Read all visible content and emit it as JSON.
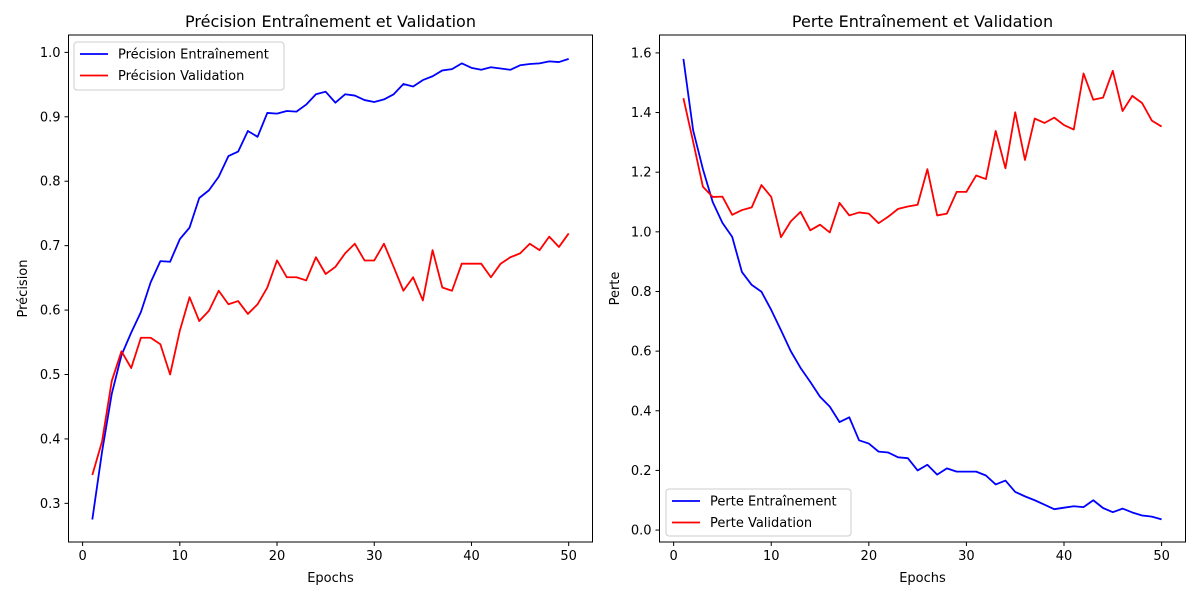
{
  "chart_data": [
    {
      "type": "line",
      "title": "Précision Entraînement et Validation",
      "xlabel": "Epochs",
      "ylabel": "Précision",
      "xlim": [
        -1.45,
        52.45
      ],
      "ylim": [
        0.24,
        1.027
      ],
      "xticks": [
        0,
        10,
        20,
        30,
        40,
        50
      ],
      "yticks": [
        0.3,
        0.4,
        0.5,
        0.6,
        0.7,
        0.8,
        0.9,
        1.0
      ],
      "ytick_labels": [
        "0.3",
        "0.4",
        "0.5",
        "0.6",
        "0.7",
        "0.8",
        "0.9",
        "1.0"
      ],
      "grid": false,
      "legend_position": "top-left",
      "x": [
        1,
        2,
        3,
        4,
        5,
        6,
        7,
        8,
        9,
        10,
        11,
        12,
        13,
        14,
        15,
        16,
        17,
        18,
        19,
        20,
        21,
        22,
        23,
        24,
        25,
        26,
        27,
        28,
        29,
        30,
        31,
        32,
        33,
        34,
        35,
        36,
        37,
        38,
        39,
        40,
        41,
        42,
        43,
        44,
        45,
        46,
        47,
        48,
        49,
        50
      ],
      "series": [
        {
          "name": "Précision Entraînement",
          "color": "#0000ff",
          "values": [
            0.275,
            0.38,
            0.47,
            0.53,
            0.565,
            0.597,
            0.643,
            0.676,
            0.675,
            0.71,
            0.728,
            0.774,
            0.786,
            0.807,
            0.839,
            0.846,
            0.878,
            0.869,
            0.906,
            0.905,
            0.909,
            0.908,
            0.919,
            0.935,
            0.939,
            0.922,
            0.935,
            0.933,
            0.926,
            0.923,
            0.927,
            0.935,
            0.951,
            0.947,
            0.957,
            0.963,
            0.972,
            0.974,
            0.983,
            0.976,
            0.973,
            0.977,
            0.975,
            0.973,
            0.98,
            0.982,
            0.983,
            0.986,
            0.985,
            0.99
          ]
        },
        {
          "name": "Précision Validation",
          "color": "#ff0000",
          "values": [
            0.344,
            0.396,
            0.49,
            0.536,
            0.51,
            0.557,
            0.557,
            0.547,
            0.5,
            0.568,
            0.62,
            0.583,
            0.599,
            0.63,
            0.609,
            0.614,
            0.594,
            0.609,
            0.635,
            0.677,
            0.651,
            0.651,
            0.646,
            0.682,
            0.656,
            0.667,
            0.688,
            0.703,
            0.677,
            0.677,
            0.703,
            0.667,
            0.63,
            0.651,
            0.615,
            0.693,
            0.635,
            0.63,
            0.672,
            0.672,
            0.672,
            0.651,
            0.672,
            0.682,
            0.688,
            0.703,
            0.693,
            0.714,
            0.698,
            0.719
          ]
        }
      ]
    },
    {
      "type": "line",
      "title": "Perte Entraînement et Validation",
      "xlabel": "Epochs",
      "ylabel": "Perte",
      "xlim": [
        -1.45,
        52.45
      ],
      "ylim": [
        -0.04,
        1.66
      ],
      "xticks": [
        0,
        10,
        20,
        30,
        40,
        50
      ],
      "yticks": [
        0.0,
        0.2,
        0.4,
        0.6,
        0.8,
        1.0,
        1.2,
        1.4,
        1.6
      ],
      "ytick_labels": [
        "0.0",
        "0.2",
        "0.4",
        "0.6",
        "0.8",
        "1.0",
        "1.2",
        "1.4",
        "1.6"
      ],
      "grid": false,
      "legend_position": "bottom-left",
      "x": [
        1,
        2,
        3,
        4,
        5,
        6,
        7,
        8,
        9,
        10,
        11,
        12,
        13,
        14,
        15,
        16,
        17,
        18,
        19,
        20,
        21,
        22,
        23,
        24,
        25,
        26,
        27,
        28,
        29,
        30,
        31,
        32,
        33,
        34,
        35,
        36,
        37,
        38,
        39,
        40,
        41,
        42,
        43,
        44,
        45,
        46,
        47,
        48,
        49,
        50
      ],
      "series": [
        {
          "name": "Perte Entraînement",
          "color": "#0000ff",
          "values": [
            1.58,
            1.34,
            1.21,
            1.1,
            1.03,
            0.983,
            0.865,
            0.822,
            0.799,
            0.738,
            0.67,
            0.6,
            0.544,
            0.497,
            0.447,
            0.414,
            0.362,
            0.378,
            0.301,
            0.29,
            0.263,
            0.26,
            0.244,
            0.241,
            0.2,
            0.219,
            0.186,
            0.207,
            0.196,
            0.196,
            0.196,
            0.183,
            0.153,
            0.166,
            0.128,
            0.113,
            0.1,
            0.085,
            0.07,
            0.075,
            0.08,
            0.077,
            0.1,
            0.074,
            0.06,
            0.072,
            0.059,
            0.049,
            0.045,
            0.036
          ]
        },
        {
          "name": "Perte Validation",
          "color": "#ff0000",
          "values": [
            1.448,
            1.302,
            1.151,
            1.117,
            1.118,
            1.057,
            1.073,
            1.082,
            1.157,
            1.117,
            0.982,
            1.035,
            1.067,
            1.005,
            1.024,
            0.998,
            1.097,
            1.055,
            1.065,
            1.061,
            1.029,
            1.051,
            1.077,
            1.085,
            1.091,
            1.21,
            1.055,
            1.061,
            1.134,
            1.134,
            1.189,
            1.177,
            1.338,
            1.213,
            1.401,
            1.241,
            1.38,
            1.365,
            1.383,
            1.358,
            1.343,
            1.531,
            1.443,
            1.45,
            1.54,
            1.405,
            1.456,
            1.432,
            1.373,
            1.353
          ]
        }
      ]
    }
  ]
}
